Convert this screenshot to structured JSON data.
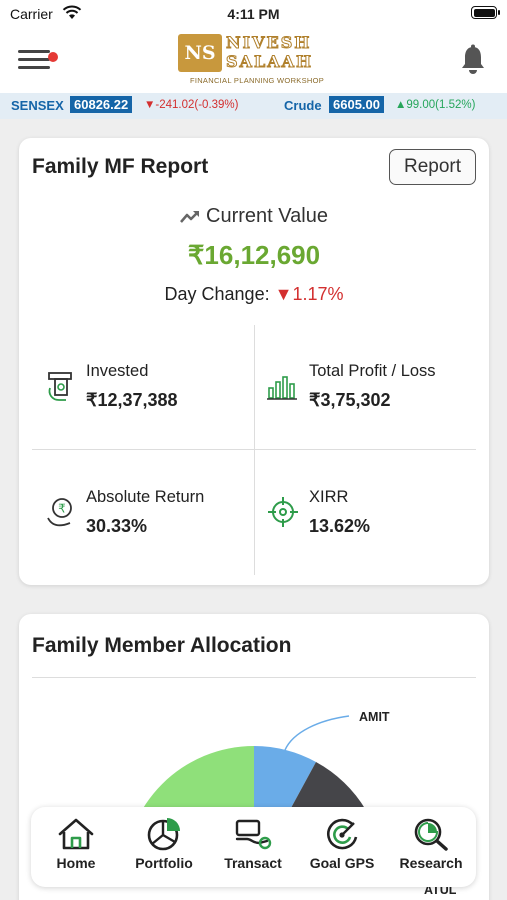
{
  "status_bar": {
    "carrier": "Carrier",
    "time": "4:11 PM"
  },
  "header": {
    "logo": {
      "badge": "NS",
      "word1": "NIVESH",
      "word2": "SALAAH",
      "tagline": "FINANCIAL PLANNING WORKSHOP"
    }
  },
  "ticker": [
    {
      "name": "SENSEX",
      "value": "60826.22",
      "change": "-241.02(-0.39%)",
      "direction": "down"
    },
    {
      "name": "Crude",
      "value": "6605.00",
      "change": "99.00(1.52%)",
      "direction": "up"
    }
  ],
  "report": {
    "title": "Family MF Report",
    "button": "Report",
    "current_value_label": "Current Value",
    "current_value": "₹16,12,690",
    "day_change_label": "Day Change:",
    "day_change_value": "1.17%",
    "stats": [
      {
        "label": "Invested",
        "value": "₹12,37,388",
        "icon": "invested-icon"
      },
      {
        "label": "Total Profit / Loss",
        "value": "₹3,75,302",
        "icon": "bar-chart-icon"
      },
      {
        "label": "Absolute Return",
        "value": "30.33%",
        "icon": "rupee-hand-icon"
      },
      {
        "label": "XIRR",
        "value": "13.62%",
        "icon": "target-icon"
      }
    ]
  },
  "allocation": {
    "title": "Family Member Allocation",
    "labels": [
      "AMIT",
      "ATUL"
    ]
  },
  "nav": [
    {
      "label": "Home",
      "icon": "home-icon"
    },
    {
      "label": "Portfolio",
      "icon": "pie-chart-icon"
    },
    {
      "label": "Transact",
      "icon": "transact-icon"
    },
    {
      "label": "Goal GPS",
      "icon": "goal-icon"
    },
    {
      "label": "Research",
      "icon": "research-icon"
    }
  ],
  "colors": {
    "accent_green": "#6aa832",
    "down_red": "#d32f2f",
    "up_green": "#26a65b",
    "ticker_blue": "#1565a8"
  }
}
